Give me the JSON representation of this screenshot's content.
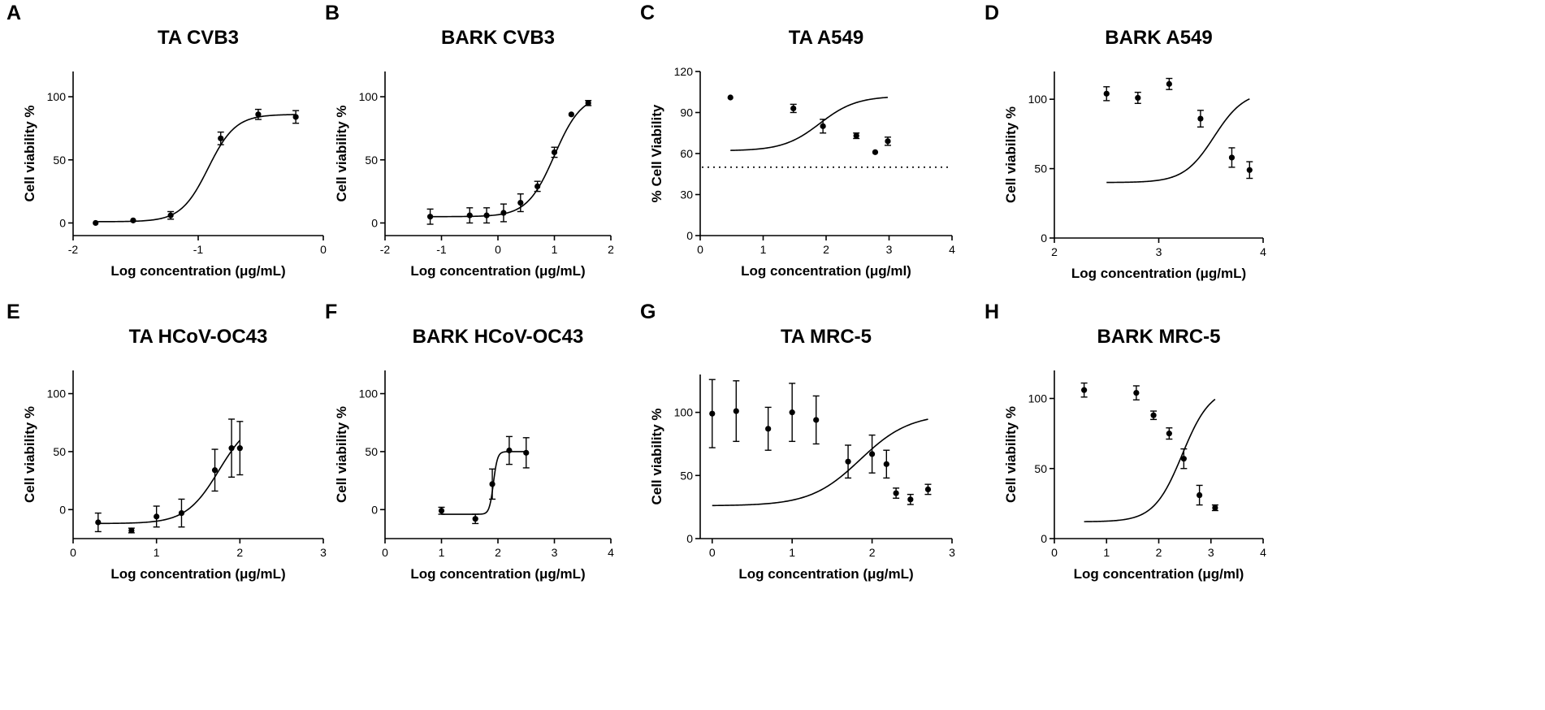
{
  "chart_data": [
    {
      "type": "scatter",
      "panel_label": "A",
      "title": "TA CVB3",
      "xlabel": "Log concentration (μg/mL)",
      "ylabel": "Cell viability %",
      "xlim": [
        -2,
        0
      ],
      "ylim": [
        -10,
        120
      ],
      "xticks": [
        -2,
        -1,
        0
      ],
      "yticks": [
        0,
        50,
        100
      ],
      "points": [
        {
          "x": -1.82,
          "y": 0,
          "err": 0
        },
        {
          "x": -1.52,
          "y": 2,
          "err": 0
        },
        {
          "x": -1.22,
          "y": 6,
          "err": 3
        },
        {
          "x": -0.82,
          "y": 67,
          "err": 5
        },
        {
          "x": -0.52,
          "y": 86,
          "err": 4
        },
        {
          "x": -0.22,
          "y": 84,
          "err": 5
        }
      ],
      "fit": {
        "bottom": 1,
        "top": 86,
        "logec50": -0.92,
        "hill": 4.0,
        "xrange": [
          -1.82,
          -0.22
        ]
      }
    },
    {
      "type": "scatter",
      "panel_label": "B",
      "title": "BARK CVB3",
      "xlabel": "Log concentration (μg/mL)",
      "ylabel": "Cell viability %",
      "xlim": [
        -2,
        2
      ],
      "ylim": [
        -10,
        120
      ],
      "xticks": [
        -2,
        -1,
        0,
        1,
        2
      ],
      "yticks": [
        0,
        50,
        100
      ],
      "points": [
        {
          "x": -1.2,
          "y": 5,
          "err": 6
        },
        {
          "x": -0.5,
          "y": 6,
          "err": 6
        },
        {
          "x": -0.2,
          "y": 6,
          "err": 6
        },
        {
          "x": 0.1,
          "y": 8,
          "err": 7
        },
        {
          "x": 0.4,
          "y": 16,
          "err": 7
        },
        {
          "x": 0.7,
          "y": 29,
          "err": 4
        },
        {
          "x": 1.0,
          "y": 56,
          "err": 4
        },
        {
          "x": 1.3,
          "y": 86,
          "err": 0
        },
        {
          "x": 1.6,
          "y": 95,
          "err": 2
        }
      ],
      "fit": {
        "bottom": 5,
        "top": 102,
        "logec50": 1.0,
        "hill": 1.8,
        "xrange": [
          -1.2,
          1.6
        ]
      }
    },
    {
      "type": "scatter",
      "panel_label": "C",
      "title": "TA A549",
      "xlabel": "Log concentration (μg/ml)",
      "ylabel": "% Cell Viability",
      "xlim": [
        0,
        4
      ],
      "ylim": [
        0,
        120
      ],
      "xticks": [
        0,
        1,
        2,
        3,
        4
      ],
      "yticks": [
        0,
        30,
        60,
        90,
        120
      ],
      "reference_line": 50,
      "points": [
        {
          "x": 0.48,
          "y": 101,
          "err": 0
        },
        {
          "x": 1.48,
          "y": 93,
          "err": 3
        },
        {
          "x": 1.95,
          "y": 80,
          "err": 5
        },
        {
          "x": 2.48,
          "y": 73,
          "err": 2
        },
        {
          "x": 2.78,
          "y": 61,
          "err": 0
        },
        {
          "x": 2.98,
          "y": 69,
          "err": 3
        }
      ],
      "fit": {
        "bottom": 62,
        "top": 102,
        "logec50": 1.9,
        "hill": 1.5,
        "xrange": [
          0.48,
          2.98
        ]
      }
    },
    {
      "type": "scatter",
      "panel_label": "D",
      "title": "BARK A549",
      "xlabel": "Log concentration (μg/mL)",
      "ylabel": "Cell viability %",
      "xlim": [
        2,
        4
      ],
      "ylim": [
        0,
        120
      ],
      "xticks": [
        2,
        3,
        4
      ],
      "yticks": [
        0,
        50,
        100
      ],
      "points": [
        {
          "x": 2.5,
          "y": 104,
          "err": 5
        },
        {
          "x": 2.8,
          "y": 101,
          "err": 4
        },
        {
          "x": 3.1,
          "y": 111,
          "err": 4
        },
        {
          "x": 3.4,
          "y": 86,
          "err": 6
        },
        {
          "x": 3.7,
          "y": 58,
          "err": 7
        },
        {
          "x": 3.87,
          "y": 49,
          "err": 6
        }
      ],
      "fit": {
        "bottom": 40,
        "top": 106,
        "logec50": 3.53,
        "hill": 3.0,
        "xrange": [
          2.5,
          3.87
        ]
      }
    },
    {
      "type": "scatter",
      "panel_label": "E",
      "title": "TA HCoV-OC43",
      "xlabel": "Log concentration (μg/mL)",
      "ylabel": "Cell viability %",
      "xlim": [
        0,
        3
      ],
      "ylim": [
        -25,
        120
      ],
      "xticks": [
        0,
        1,
        2,
        3
      ],
      "yticks": [
        0,
        50,
        100
      ],
      "points": [
        {
          "x": 0.3,
          "y": -11,
          "err": 8
        },
        {
          "x": 0.7,
          "y": -18,
          "err": 2
        },
        {
          "x": 1.0,
          "y": -6,
          "err": 9
        },
        {
          "x": 1.3,
          "y": -3,
          "err": 12
        },
        {
          "x": 1.7,
          "y": 34,
          "err": 18
        },
        {
          "x": 1.9,
          "y": 53,
          "err": 25
        },
        {
          "x": 2.0,
          "y": 53,
          "err": 23
        }
      ],
      "fit": {
        "bottom": -12,
        "top": 80,
        "logec50": 1.75,
        "hill": 2.2,
        "xrange": [
          0.3,
          2.0
        ]
      }
    },
    {
      "type": "scatter",
      "panel_label": "F",
      "title": "BARK HCoV-OC43",
      "xlabel": "Log concentration (μg/mL)",
      "ylabel": "Cell viability %",
      "xlim": [
        0,
        4
      ],
      "ylim": [
        -25,
        120
      ],
      "xticks": [
        0,
        1,
        2,
        3,
        4
      ],
      "yticks": [
        0,
        50,
        100
      ],
      "points": [
        {
          "x": 1.0,
          "y": -1,
          "err": 3
        },
        {
          "x": 1.6,
          "y": -8,
          "err": 4
        },
        {
          "x": 1.9,
          "y": 22,
          "err": 13
        },
        {
          "x": 2.2,
          "y": 51,
          "err": 12
        },
        {
          "x": 2.5,
          "y": 49,
          "err": 13
        }
      ],
      "fit": {
        "bottom": -4,
        "top": 50,
        "logec50": 1.92,
        "hill": 12,
        "xrange": [
          1.0,
          2.5
        ]
      }
    },
    {
      "type": "scatter",
      "panel_label": "G",
      "title": "TA MRC-5",
      "xlabel": "Log concentration (μg/mL)",
      "ylabel": "Cell viability %",
      "xlim": [
        -0.15,
        3
      ],
      "ylim": [
        0,
        130
      ],
      "xticks": [
        0,
        1,
        2,
        3
      ],
      "yticks": [
        0,
        50,
        100
      ],
      "points": [
        {
          "x": 0.0,
          "y": 99,
          "err": 27
        },
        {
          "x": 0.3,
          "y": 101,
          "err": 24
        },
        {
          "x": 0.7,
          "y": 87,
          "err": 17
        },
        {
          "x": 1.0,
          "y": 100,
          "err": 23
        },
        {
          "x": 1.3,
          "y": 94,
          "err": 19
        },
        {
          "x": 1.7,
          "y": 61,
          "err": 13
        },
        {
          "x": 2.0,
          "y": 67,
          "err": 15
        },
        {
          "x": 2.18,
          "y": 59,
          "err": 11
        },
        {
          "x": 2.3,
          "y": 36,
          "err": 4
        },
        {
          "x": 2.48,
          "y": 31,
          "err": 4
        },
        {
          "x": 2.7,
          "y": 39,
          "err": 4
        }
      ],
      "fit": {
        "bottom": 26,
        "top": 99,
        "logec50": 1.85,
        "hill": 1.4,
        "xrange": [
          0.0,
          2.7
        ]
      }
    },
    {
      "type": "scatter",
      "panel_label": "H",
      "title": "BARK MRC-5",
      "xlabel": "Log concentration (μg/ml)",
      "ylabel": "Cell viability %",
      "xlim": [
        0,
        4
      ],
      "ylim": [
        0,
        120
      ],
      "xticks": [
        0,
        1,
        2,
        3,
        4
      ],
      "yticks": [
        0,
        50,
        100
      ],
      "points": [
        {
          "x": 0.57,
          "y": 106,
          "err": 5
        },
        {
          "x": 1.57,
          "y": 104,
          "err": 5
        },
        {
          "x": 1.9,
          "y": 88,
          "err": 3
        },
        {
          "x": 2.2,
          "y": 75,
          "err": 4
        },
        {
          "x": 2.48,
          "y": 57,
          "err": 7
        },
        {
          "x": 2.78,
          "y": 31,
          "err": 7
        },
        {
          "x": 3.08,
          "y": 22,
          "err": 2
        }
      ],
      "fit": {
        "bottom": 12,
        "top": 108,
        "logec50": 2.45,
        "hill": 1.6,
        "xrange": [
          0.57,
          3.08
        ]
      }
    }
  ]
}
